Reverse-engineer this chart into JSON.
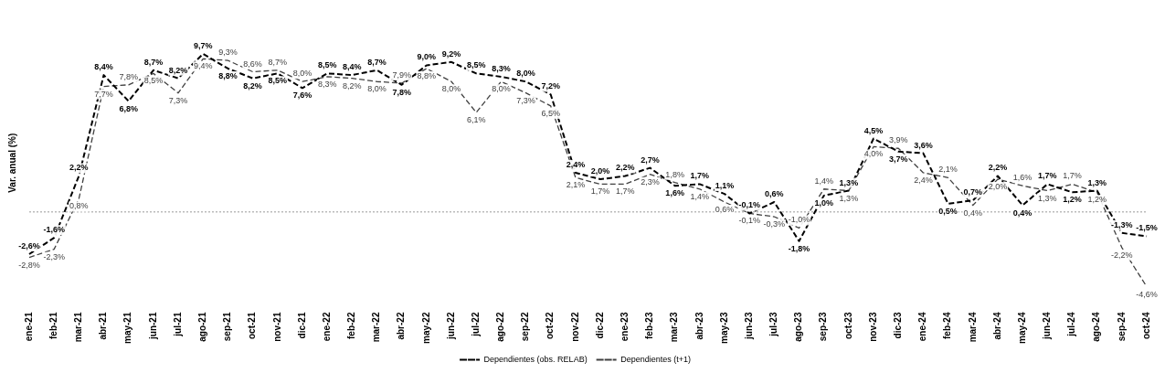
{
  "chart_data": {
    "type": "line",
    "ylabel": "Var. anual (%)",
    "categories": [
      "ene-21",
      "feb-21",
      "mar-21",
      "abr-21",
      "may-21",
      "jun-21",
      "jul-21",
      "ago-21",
      "sep-21",
      "oct-21",
      "nov-21",
      "dic-21",
      "ene-22",
      "feb-22",
      "mar-22",
      "abr-22",
      "may-22",
      "jun-22",
      "jul-22",
      "ago-22",
      "sep-22",
      "oct-22",
      "nov-22",
      "dic-22",
      "ene-23",
      "feb-23",
      "mar-23",
      "abr-23",
      "may-23",
      "jun-23",
      "jul-23",
      "ago-23",
      "sep-23",
      "oct-23",
      "nov-23",
      "dic-23",
      "ene-24",
      "feb-24",
      "mar-24",
      "abr-24",
      "may-24",
      "jun-24",
      "jul-24",
      "ago-24",
      "sep-24",
      "oct-24"
    ],
    "series": [
      {
        "name": "Dependientes (obs. RELAB)",
        "color": "#000000",
        "values": [
          -2.6,
          -1.6,
          2.2,
          8.4,
          6.8,
          8.7,
          8.2,
          9.7,
          8.8,
          8.2,
          8.5,
          7.6,
          8.5,
          8.4,
          8.7,
          7.8,
          9.0,
          9.2,
          8.5,
          8.3,
          8.0,
          7.2,
          2.4,
          2.0,
          2.2,
          2.7,
          1.6,
          1.7,
          1.1,
          -0.1,
          0.6,
          -1.8,
          1.0,
          1.3,
          4.5,
          3.7,
          3.6,
          0.5,
          0.7,
          2.2,
          0.4,
          1.7,
          1.2,
          1.3,
          -1.3,
          -1.5
        ],
        "value_labels": [
          "-2,6%",
          "-1,6%",
          "2,2%",
          "8,4%",
          "6,8%",
          "8,7%",
          "8,2%",
          "9,7%",
          "8,8%",
          "8,2%",
          "8,5%",
          "7,6%",
          "8,5%",
          "8,4%",
          "8,7%",
          "7,8%",
          "9,0%",
          "9,2%",
          "8,5%",
          "8,3%",
          "8,0%",
          "7,2%",
          "2,4%",
          "2,0%",
          "2,2%",
          "2,7%",
          "1,6%",
          "1,7%",
          "1,1%",
          "-0,1%",
          "0,6%",
          "-1,8%",
          "1,0%",
          "1,3%",
          "4,5%",
          "3,7%",
          "3,6%",
          "0,5%",
          "0,7%",
          "2,2%",
          "0,4%",
          "1,7%",
          "1,2%",
          "1,3%",
          "-1,3%",
          "-1,5%"
        ]
      },
      {
        "name": "Dependientes (t+1)",
        "color": "#404040",
        "values": [
          -2.8,
          -2.3,
          0.8,
          7.7,
          7.8,
          8.5,
          7.3,
          9.4,
          9.3,
          8.6,
          8.7,
          8.0,
          8.3,
          8.2,
          8.0,
          7.9,
          8.8,
          8.0,
          6.1,
          8.0,
          7.3,
          6.5,
          2.1,
          1.7,
          1.7,
          2.3,
          1.8,
          1.4,
          0.6,
          -0.1,
          -0.3,
          -1.0,
          1.4,
          1.3,
          4.0,
          3.9,
          2.4,
          2.1,
          0.4,
          2.0,
          1.6,
          1.3,
          1.7,
          1.2,
          -2.2,
          -4.6
        ],
        "value_labels": [
          "-2,8%",
          "-2,3%",
          "0,8%",
          "7,7%",
          "7,8%",
          "8,5%",
          "7,3%",
          "9,4%",
          "9,3%",
          "8,6%",
          "8,7%",
          "8,0%",
          "8,3%",
          "8,2%",
          "8,0%",
          "7,9%",
          "8,8%",
          "8,0%",
          "6,1%",
          "8,0%",
          "7,3%",
          "6,5%",
          "2,1%",
          "1,7%",
          "1,7%",
          "2,3%",
          "1,8%",
          "1,4%",
          "0,6%",
          "-0,1%",
          "-0,3%",
          "-1,0%",
          "1,4%",
          "1,3%",
          "4,0%",
          "3,9%",
          "2,4%",
          "2,1%",
          "0,4%",
          "2,0%",
          "1,6%",
          "1,3%",
          "1,7%",
          "1,2%",
          "-2,2%",
          "-4,6%"
        ]
      }
    ],
    "ref_lines": [
      {
        "axis": "y",
        "value": 0,
        "color": "#bbbbbb",
        "line_style": "dotted"
      }
    ],
    "legend": "bottom",
    "line_style": "dashed",
    "marker": "none",
    "grid": false,
    "tick_labels": "x"
  }
}
